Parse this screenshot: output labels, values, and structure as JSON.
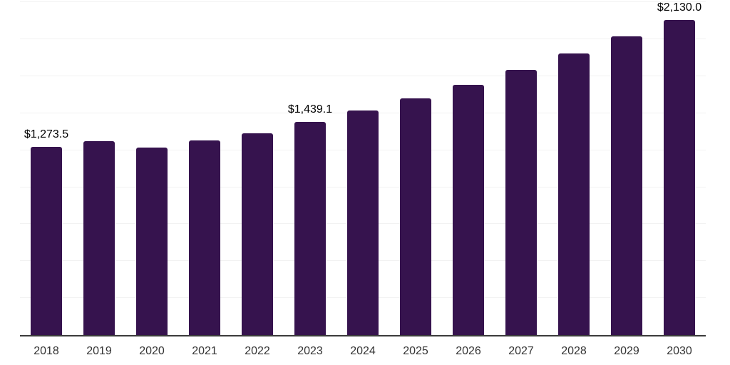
{
  "chart_data": {
    "type": "bar",
    "title": "",
    "xlabel": "",
    "ylabel": "",
    "categories": [
      "2018",
      "2019",
      "2020",
      "2021",
      "2022",
      "2023",
      "2024",
      "2025",
      "2026",
      "2027",
      "2028",
      "2029",
      "2030"
    ],
    "values": [
      1273.5,
      1310,
      1267,
      1316,
      1366,
      1439.1,
      1516,
      1600,
      1692,
      1795,
      1902,
      2019,
      2130.0
    ],
    "value_labels": [
      {
        "index": 0,
        "text": "$1,273.5"
      },
      {
        "index": 5,
        "text": "$1,439.1"
      },
      {
        "index": 12,
        "text": "$2,130.0"
      }
    ],
    "ylim": [
      0,
      2265
    ],
    "gridline_step": 250,
    "grid": "horizontal-only",
    "legend": "none",
    "y_axis_tick_labels": "none",
    "bar_color": "#36134E",
    "gridline_color": "#f2f2f2",
    "axis_line_color": "#3b3b3b",
    "value_label_color": "#000000",
    "x_label_color": "#333333"
  }
}
